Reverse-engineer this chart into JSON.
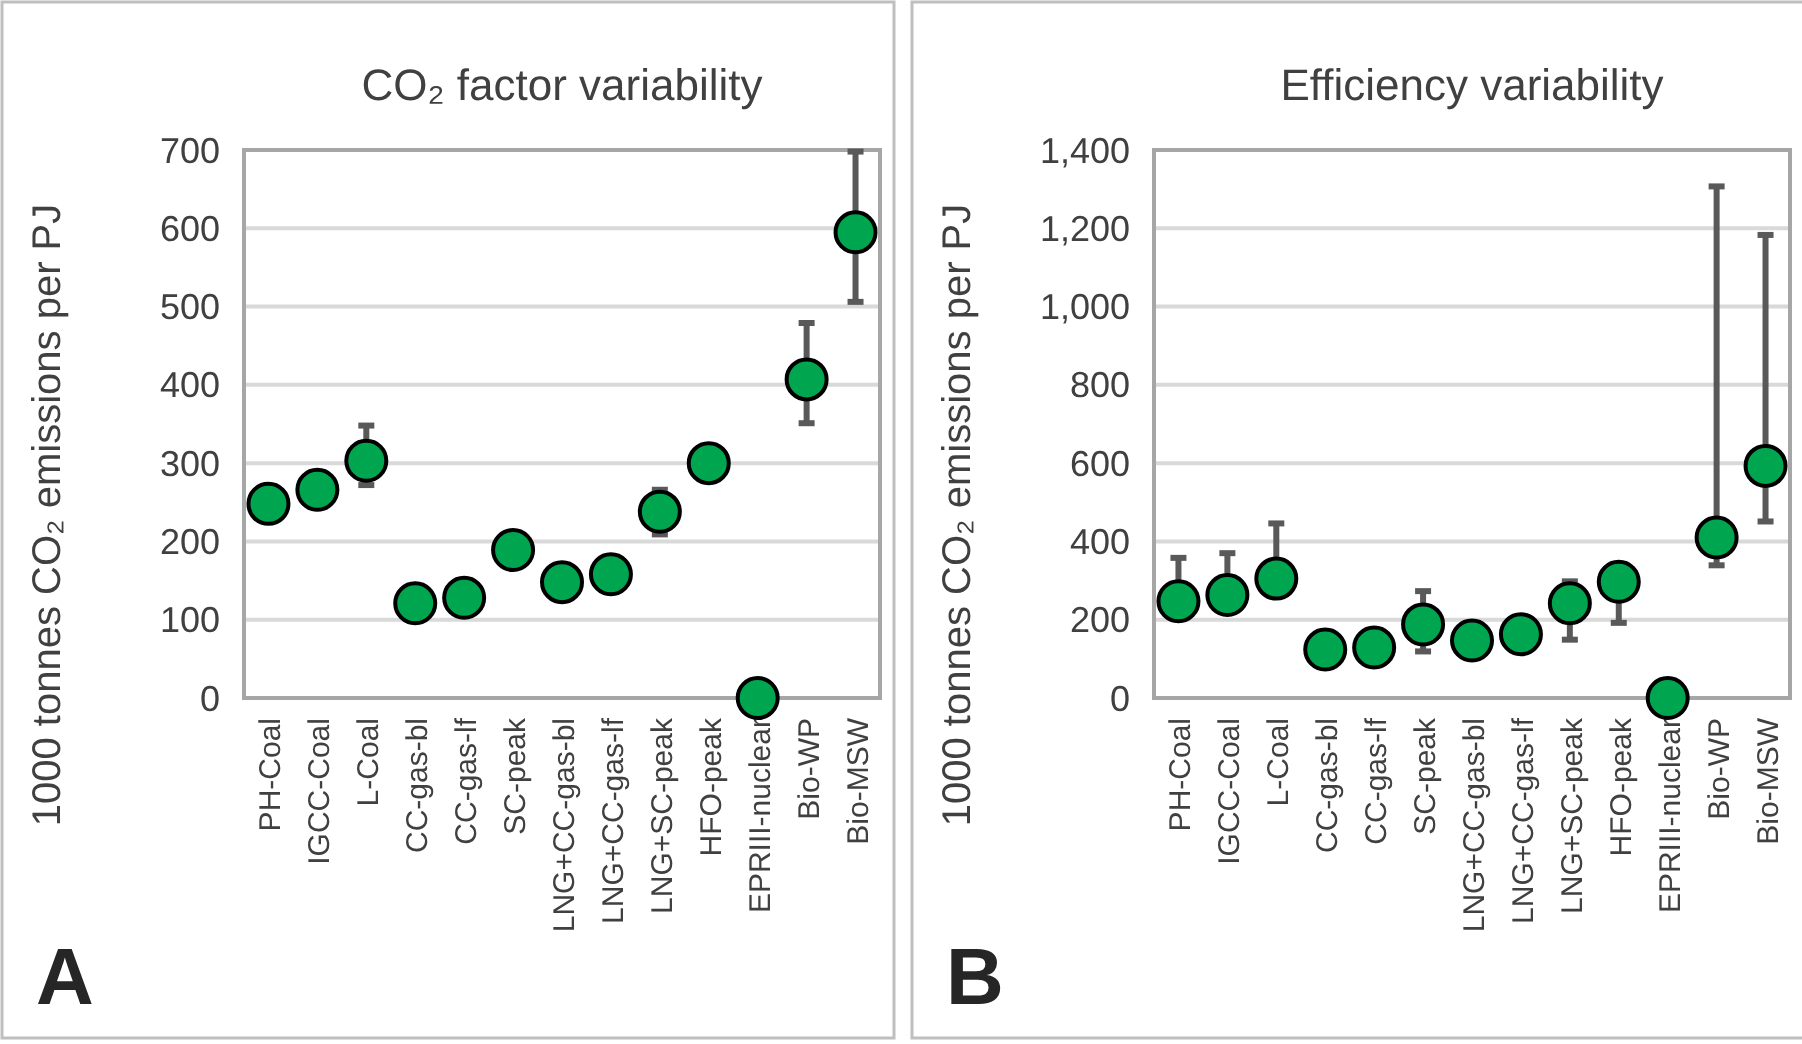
{
  "chart_data": [
    {
      "type": "scatter",
      "title": "CO₂ factor variability",
      "ylabel": "1000 tonnes CO₂ emissions per PJ",
      "annotations": [
        "A"
      ],
      "categories": [
        "PH-Coal",
        "IGCC-Coal",
        "L-Coal",
        "CC-gas-bl",
        "CC-gas-lf",
        "SC-peak",
        "LNG+CC-gas-bl",
        "LNG+CC-gas-lf",
        "LNG+SC-peak",
        "HFO-peak",
        "EPRIII-nuclear",
        "Bio-WP",
        "Bio-MSW"
      ],
      "series": [
        {
          "color": "#00a550",
          "values": [
            248,
            266,
            303,
            121,
            128,
            189,
            148,
            158,
            238,
            300,
            0,
            407,
            595
          ],
          "errors": [
            null,
            null,
            [
              272,
              348
            ],
            null,
            null,
            null,
            null,
            null,
            [
              209,
              266
            ],
            null,
            null,
            [
              351,
              479
            ],
            [
              506,
              698
            ]
          ]
        }
      ],
      "ylim": [
        0,
        700
      ],
      "yticks": [
        0,
        100,
        200,
        300,
        400,
        500,
        600,
        700
      ],
      "grid": "y",
      "marker": "circle"
    },
    {
      "type": "scatter",
      "title": "Efficiency variability",
      "ylabel": "1000 tonnes CO₂ emissions per PJ",
      "annotations": [
        "B"
      ],
      "categories": [
        "PH-Coal",
        "IGCC-Coal",
        "L-Coal",
        "CC-gas-bl",
        "CC-gas-lf",
        "SC-peak",
        "LNG+CC-gas-bl",
        "LNG+CC-gas-lf",
        "LNG+SC-peak",
        "HFO-peak",
        "EPRIII-nuclear",
        "Bio-WP",
        "Bio-MSW"
      ],
      "series": [
        {
          "color": "#00a550",
          "values": [
            247,
            263,
            305,
            124,
            129,
            188,
            147,
            163,
            242,
            297,
            0,
            410,
            593
          ],
          "errors": [
            [
              247,
              358
            ],
            [
              263,
              370
            ],
            [
              305,
              446
            ],
            [
              124,
              169
            ],
            [
              129,
              171
            ],
            [
              119,
              273
            ],
            null,
            null,
            [
              149,
              298
            ],
            [
              192,
              297
            ],
            null,
            [
              339,
              1307
            ],
            [
              451,
              1183
            ]
          ]
        }
      ],
      "ylim": [
        0,
        1400
      ],
      "yticks": [
        0,
        {
          "value": 200,
          "label": "200"
        },
        400,
        600,
        800,
        {
          "value": 1000,
          "label": "1,000"
        },
        {
          "value": 1200,
          "label": "1,200"
        },
        {
          "value": 1400,
          "label": "1,400"
        }
      ],
      "grid": "y",
      "marker": "circle"
    }
  ]
}
